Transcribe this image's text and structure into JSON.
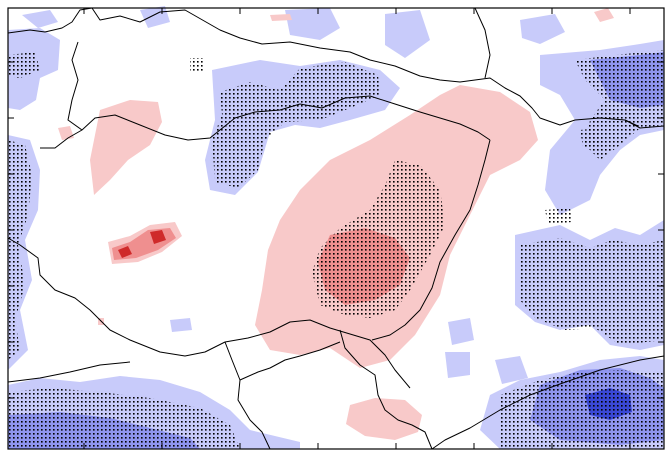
{
  "map": {
    "colors": {
      "background": "#ffffff",
      "light_blue": "#c8cbfa",
      "mid_blue": "#8f95ef",
      "deep_blue": "#3a48d6",
      "light_red": "#f8c9c9",
      "mid_red": "#ef8f8f",
      "deep_red": "#cf2a2a",
      "border": "#000000",
      "stipple": "#000000"
    },
    "tick_marks": true,
    "frame": true
  }
}
